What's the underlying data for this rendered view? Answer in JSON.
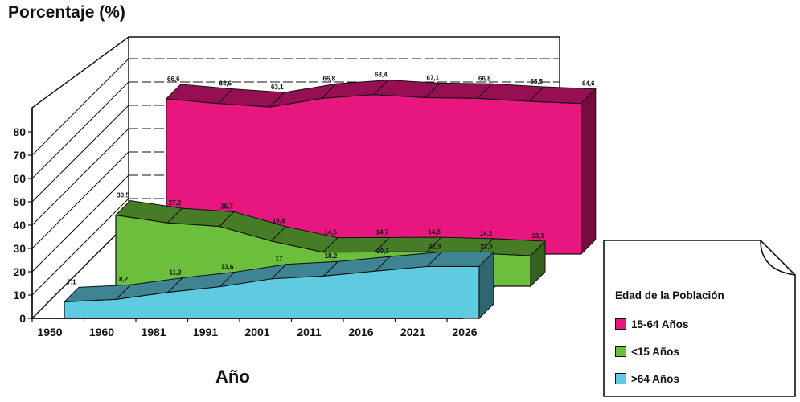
{
  "chart_data": {
    "type": "area",
    "title": "",
    "ylabel": "Porcentaje (%)",
    "xlabel": "Año",
    "categories": [
      "1950",
      "1960",
      "1981",
      "1991",
      "2001",
      "2011",
      "2016",
      "2021",
      "2026"
    ],
    "y_ticks": [
      "0",
      "10",
      "20",
      "30",
      "40",
      "50",
      "60",
      "70",
      "80"
    ],
    "ylim": [
      0,
      80
    ],
    "series": [
      {
        "name": "15-64 Años",
        "color": "#e8177f",
        "values": [
          66.6,
          64.6,
          63.1,
          66.8,
          68.4,
          67.1,
          66.8,
          65.5,
          64.6
        ],
        "labels": [
          "66,6",
          "64,6",
          "63,1",
          "66,8",
          "68,4",
          "67,1",
          "66,8",
          "65,5",
          "64,6"
        ]
      },
      {
        "name": "<15 Años",
        "color": "#6bbf3a",
        "values": [
          30.5,
          27.2,
          25.7,
          19.4,
          14.6,
          14.7,
          14.8,
          14.2,
          13.1
        ],
        "labels": [
          "30,5",
          "27,2",
          "25,7",
          "19,4",
          "14,6",
          "14,7",
          "14,8",
          "14,2",
          "13,1"
        ]
      },
      {
        "name": ">64 Años",
        "color": "#5fcbe0",
        "values": [
          7.1,
          8.2,
          11.2,
          13.6,
          17,
          18.2,
          20.3,
          22.3,
          22.3
        ],
        "labels": [
          "7,1",
          "8,2",
          "11,2",
          "13,6",
          "17",
          "18,2",
          "20,3",
          "22,3",
          "22,3"
        ]
      }
    ],
    "legend": {
      "title": "Edad de la Población",
      "position": "bottom-right"
    },
    "grid": true
  }
}
